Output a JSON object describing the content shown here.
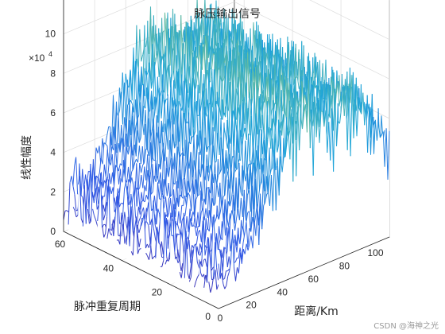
{
  "chart_data": {
    "type": "surface-3d-waterfall",
    "title": "脉压输出信号",
    "xlabel": "距离/Km",
    "ylabel": "脉冲重复周期",
    "zlabel": "线性幅度",
    "z_exponent_label": "×10",
    "z_exponent_power": "4",
    "xlim": [
      0,
      110
    ],
    "ylim": [
      0,
      64
    ],
    "zlim": [
      0,
      120000
    ],
    "x_ticks": [
      0,
      20,
      40,
      60,
      80,
      100
    ],
    "x_tick_labels": [
      "0",
      "20",
      "40",
      "60",
      "80",
      "100"
    ],
    "y_ticks": [
      0,
      20,
      40,
      60
    ],
    "y_tick_labels": [
      "0",
      "20",
      "40",
      "60"
    ],
    "z_ticks": [
      0,
      20000,
      40000,
      60000,
      80000,
      100000,
      120000
    ],
    "z_tick_labels": [
      "0",
      "2",
      "4",
      "6",
      "8",
      "10",
      "12"
    ],
    "noise_floor_max": 40000,
    "target_peaks": [
      {
        "range_km": 58,
        "amplitude": 100000
      },
      {
        "range_km": 85,
        "amplitude": 95000
      }
    ],
    "colormap": "parula",
    "colors": {
      "low": "#3d26a8",
      "mid": "#1ea6d9",
      "high": "#f9e82c"
    },
    "grid": true
  },
  "watermark": "CSDN @海神之光"
}
